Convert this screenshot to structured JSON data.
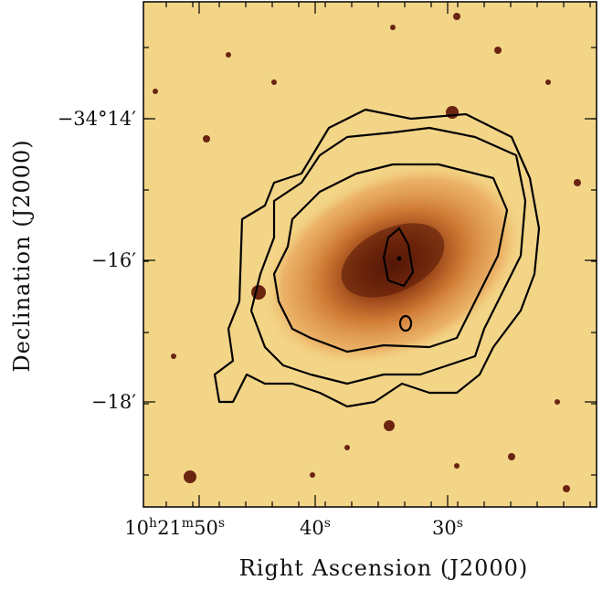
{
  "figure": {
    "x_axis": {
      "label": "Right Ascension (J2000)",
      "ticks": [
        [
          "10",
          "h",
          "21",
          "m",
          "50",
          "s"
        ],
        [
          "40",
          "s"
        ],
        [
          "30",
          "s"
        ]
      ]
    },
    "y_axis": {
      "label": "Declination (J2000)",
      "ticks": [
        "−34°14′",
        "−16′",
        "−18′"
      ]
    }
  }
}
